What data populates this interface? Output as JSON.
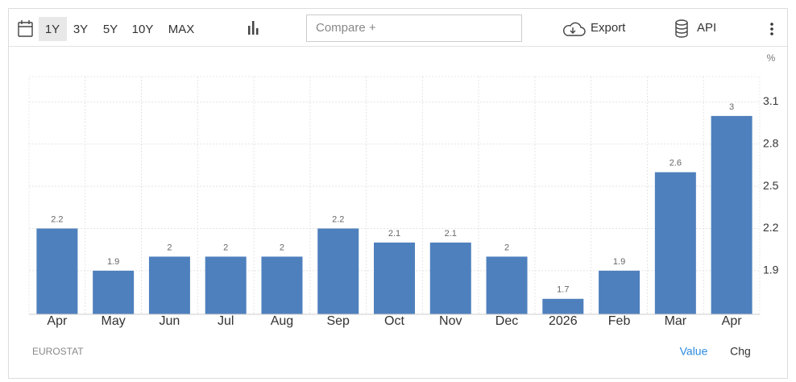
{
  "toolbar": {
    "ranges": [
      "1Y",
      "3Y",
      "5Y",
      "10Y",
      "MAX"
    ],
    "compare": "Compare +",
    "export": "Export",
    "api": "API"
  },
  "chart_data": {
    "type": "bar",
    "unit": "%",
    "categories": [
      "Apr",
      "May",
      "Jun",
      "Jul",
      "Aug",
      "Sep",
      "Oct",
      "Nov",
      "Dec",
      "2026",
      "Feb",
      "Mar",
      "Apr"
    ],
    "values": [
      2.2,
      1.9,
      2,
      2,
      2,
      2.2,
      2.1,
      2.1,
      2,
      1.7,
      1.9,
      2.6,
      3
    ],
    "color": "#4e80bd",
    "ylim": [
      1.59,
      3.28
    ],
    "yticks": [
      1.9,
      2.2,
      2.5,
      2.8,
      3.1
    ],
    "grid": true
  },
  "footer": {
    "source": "EUROSTAT",
    "tabs": [
      "Value",
      "Chg"
    ]
  }
}
